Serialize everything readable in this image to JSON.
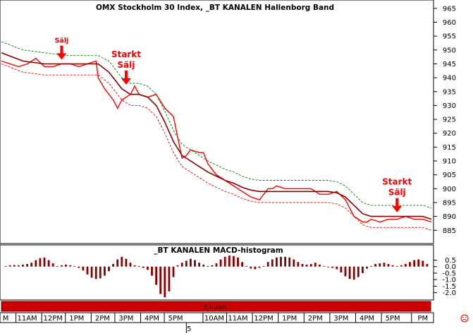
{
  "chart_data": [
    {
      "type": "line",
      "title": "OMX Stockholm 30 Index, _BT KANALEN Hallenborg Band",
      "y_ticks": [
        965,
        960,
        955,
        950,
        945,
        940,
        935,
        930,
        925,
        920,
        915,
        910,
        905,
        900,
        895,
        890,
        885
      ],
      "ylim": [
        881,
        967
      ],
      "xlim": [
        0,
        100
      ],
      "grid": false,
      "series": [
        {
          "role": "price",
          "color": "#ff0000",
          "x": [
            0,
            2,
            4,
            6,
            8,
            10,
            12,
            14,
            16,
            18,
            20,
            22,
            22.5,
            24,
            26,
            27,
            28,
            30,
            31,
            32,
            34,
            36,
            38,
            40,
            42,
            43,
            44,
            46,
            47,
            48,
            50,
            52,
            54,
            56,
            58,
            60,
            62,
            63,
            64,
            66,
            68,
            70,
            72,
            74,
            76,
            78,
            80,
            82,
            84,
            85,
            86,
            88,
            90,
            92,
            94,
            96,
            98,
            100
          ],
          "values": [
            946,
            945,
            944,
            945,
            947,
            944,
            944,
            945,
            945,
            944,
            945,
            946,
            940,
            936,
            932,
            929,
            932,
            934,
            937,
            934,
            933,
            934,
            929,
            926,
            911,
            912,
            914,
            913,
            913,
            909,
            905,
            903,
            901,
            899,
            897,
            896,
            900,
            900,
            901,
            900,
            900,
            900,
            900,
            898,
            898,
            899,
            896,
            890,
            888,
            888,
            889,
            888,
            889,
            889,
            890,
            889,
            889,
            888
          ]
        },
        {
          "role": "midline",
          "color": "#8b0000",
          "x": [
            0,
            5,
            10,
            15,
            20,
            22.5,
            25,
            28,
            30,
            32,
            34,
            36,
            38,
            40,
            42,
            44,
            46,
            48,
            50,
            52,
            54,
            56,
            58,
            60,
            62,
            64,
            66,
            68,
            70,
            72,
            74,
            76,
            78,
            80,
            82,
            84,
            86,
            88,
            90,
            92,
            94,
            96,
            98,
            100
          ],
          "values": [
            949,
            946,
            945,
            945,
            945,
            945,
            942,
            936,
            934,
            934,
            933,
            930,
            924,
            917,
            912,
            910,
            908,
            906,
            904.5,
            903,
            902,
            900.5,
            899.5,
            899,
            899,
            899,
            899,
            899,
            899,
            899,
            899,
            899,
            898.5,
            897,
            894,
            891,
            890,
            890,
            890,
            890,
            890,
            890,
            890,
            889
          ]
        },
        {
          "role": "upper-band",
          "color": "#008000",
          "x": [
            0,
            5,
            10,
            15,
            20,
            22.5,
            25,
            28,
            30,
            32,
            34,
            36,
            38,
            40,
            42,
            44,
            46,
            48,
            50,
            52,
            54,
            56,
            58,
            60,
            62,
            64,
            66,
            68,
            70,
            72,
            74,
            76,
            78,
            80,
            82,
            84,
            86,
            88,
            90,
            92,
            94,
            96,
            98,
            100
          ],
          "values": [
            953,
            950,
            949,
            948,
            948,
            948,
            946,
            940,
            938,
            938,
            937,
            934,
            928,
            921,
            916,
            914,
            912,
            910,
            908.5,
            907,
            906,
            904.5,
            903.5,
            903,
            903,
            903,
            903,
            903,
            903,
            903,
            903,
            903,
            902.5,
            901,
            898,
            895,
            894,
            894,
            894,
            894,
            894,
            894,
            894,
            893
          ]
        },
        {
          "role": "lower-band",
          "color": "#ff0000",
          "x": [
            0,
            5,
            10,
            15,
            20,
            22.5,
            25,
            28,
            30,
            32,
            34,
            36,
            38,
            40,
            42,
            44,
            46,
            48,
            50,
            52,
            54,
            56,
            58,
            60,
            62,
            64,
            66,
            68,
            70,
            72,
            74,
            76,
            78,
            80,
            82,
            84,
            86,
            88,
            90,
            92,
            94,
            96,
            98,
            100
          ],
          "values": [
            945,
            942,
            941,
            941,
            941,
            941,
            938,
            932,
            930,
            930,
            929,
            926,
            920,
            913,
            908,
            906,
            904,
            902,
            900.5,
            899,
            898,
            896.5,
            895.5,
            895,
            895,
            895,
            895,
            895,
            895,
            895,
            895,
            895,
            894.5,
            893,
            890,
            887,
            886,
            886,
            886,
            886,
            886,
            886,
            886,
            885
          ]
        }
      ],
      "annotations": [
        {
          "text": [
            "Sälj"
          ],
          "x": 14,
          "y": 946
        },
        {
          "text": [
            "Starkt",
            "Sälj"
          ],
          "x": 29,
          "y": 937
        },
        {
          "text": [
            "Starkt",
            "Sälj"
          ],
          "x": 92,
          "y": 891
        }
      ]
    },
    {
      "type": "bar",
      "title": "_BT KANALEN MACD-histogram",
      "y_ticks": [
        "0.5",
        "0.0",
        "-0.5",
        "-1.0",
        "-1.5",
        "-2.0"
      ],
      "y_tick_values": [
        0.5,
        0.0,
        -0.5,
        -1.0,
        -1.5,
        -2.0
      ],
      "ylim": [
        -2.4,
        0.85
      ],
      "xlim": [
        0,
        100
      ],
      "color": "#8b0000",
      "x": [
        1,
        2,
        3,
        4,
        5,
        6,
        7,
        8,
        9,
        10,
        11,
        12,
        13,
        14,
        15,
        16,
        17,
        18,
        19,
        20,
        21,
        22,
        23,
        24,
        25,
        26,
        27,
        28,
        29,
        30,
        31,
        32,
        33,
        34,
        35,
        36,
        37,
        38,
        39,
        40,
        41,
        42,
        43,
        44,
        45,
        46,
        47,
        48,
        49,
        50,
        51,
        52,
        53,
        54,
        55,
        56,
        57,
        58,
        59,
        60,
        61,
        62,
        63,
        64,
        65,
        66,
        67,
        68,
        69,
        70,
        71,
        72,
        73,
        74,
        75,
        76,
        77,
        78,
        79,
        80,
        81,
        82,
        83,
        84,
        85,
        86,
        87,
        88,
        89,
        90,
        91,
        92,
        93,
        94,
        95,
        96,
        97,
        98,
        99
      ],
      "values": [
        0.05,
        0.1,
        0.12,
        0.1,
        0.15,
        0.2,
        0.3,
        0.5,
        0.65,
        0.7,
        0.5,
        0.25,
        0.05,
        0.1,
        0.15,
        0.1,
        0.05,
        -0.1,
        -0.3,
        -0.6,
        -0.85,
        -0.95,
        -0.9,
        -0.7,
        -0.35,
        0.2,
        0.55,
        0.75,
        0.6,
        0.3,
        0.1,
        0.05,
        -0.1,
        -0.25,
        -0.7,
        -1.4,
        -2.1,
        -2.35,
        -1.9,
        -0.8,
        0.1,
        0.3,
        0.45,
        0.6,
        0.5,
        0.3,
        0.15,
        0.05,
        0.1,
        0.25,
        0.55,
        0.75,
        0.85,
        0.8,
        0.7,
        0.35,
        0.05,
        -0.15,
        -0.2,
        -0.1,
        0.05,
        0.35,
        0.55,
        0.7,
        0.75,
        0.75,
        0.7,
        0.55,
        0.35,
        0.2,
        0.15,
        0.2,
        0.3,
        0.15,
        0.05,
        -0.05,
        -0.1,
        -0.2,
        -0.45,
        -0.75,
        -0.95,
        -1.0,
        -0.8,
        -0.5,
        -0.15,
        0.05,
        0.2,
        0.25,
        0.3,
        0.2,
        0.1,
        0.05,
        0.1,
        0.2,
        0.35,
        0.5,
        0.55,
        0.45,
        0.2
      ]
    }
  ],
  "zone_bar": {
    "label": "Säljzon",
    "color": "#cc0000"
  },
  "time_axis": {
    "labels": [
      {
        "text": "M",
        "x": 1
      },
      {
        "text": "11AM",
        "x": 6
      },
      {
        "text": "12PM",
        "x": 12
      },
      {
        "text": "1PM",
        "x": 17.5
      },
      {
        "text": "2PM",
        "x": 23.5
      },
      {
        "text": "3PM",
        "x": 29
      },
      {
        "text": "4PM",
        "x": 35
      },
      {
        "text": "5PM",
        "x": 40.5
      },
      {
        "text": "10AM",
        "x": 49.5
      },
      {
        "text": "11AM",
        "x": 55
      },
      {
        "text": "12PM",
        "x": 61
      },
      {
        "text": "1PM",
        "x": 67
      },
      {
        "text": "2PM",
        "x": 73
      },
      {
        "text": "3PM",
        "x": 79
      },
      {
        "text": "4PM",
        "x": 85
      },
      {
        "text": "5PM",
        "x": 91
      },
      {
        "text": "PM",
        "x": 98
      }
    ],
    "day_marker": {
      "text": "5",
      "x": 43.5
    }
  },
  "indicator_icon": "smiley-icon"
}
